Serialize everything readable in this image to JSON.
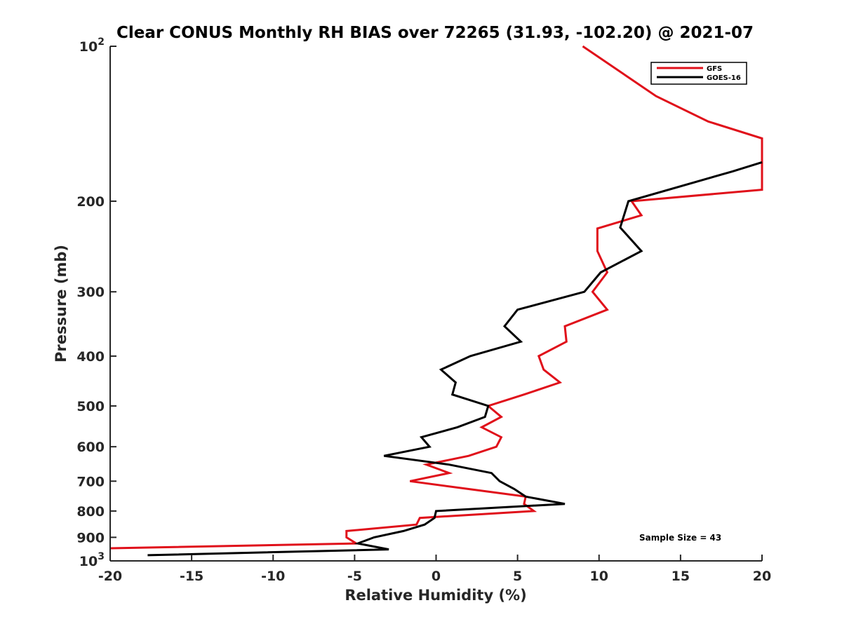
{
  "chart_data": {
    "type": "line",
    "title": "Clear CONUS Monthly RH BIAS over 72265 (31.93, -102.20) @ 2021-07",
    "xlabel": "Relative Humidity (%)",
    "ylabel": "Pressure (mb)",
    "xlim": [
      -20,
      20
    ],
    "ylim": [
      100,
      1000
    ],
    "yscale": "log",
    "y_reversed": true,
    "grid": false,
    "legend_position": "top-right",
    "x_ticks": [
      -20,
      -15,
      -10,
      -5,
      0,
      5,
      10,
      15,
      20
    ],
    "y_tick_labels": [
      {
        "value": 100,
        "base": "10",
        "exp": "2"
      },
      {
        "value": 200,
        "text": "200"
      },
      {
        "value": 300,
        "text": "300"
      },
      {
        "value": 400,
        "text": "400"
      },
      {
        "value": 500,
        "text": "500"
      },
      {
        "value": 600,
        "text": "600"
      },
      {
        "value": 700,
        "text": "700"
      },
      {
        "value": 800,
        "text": "800"
      },
      {
        "value": 900,
        "text": "900"
      },
      {
        "value": 1000,
        "base": "10",
        "exp": "3"
      }
    ],
    "series": [
      {
        "name": "GFS",
        "color": "#e0101a",
        "points": [
          [
            9.0,
            100
          ],
          [
            13.5,
            125
          ],
          [
            16.7,
            140
          ],
          [
            20.0,
            151
          ],
          [
            20.0,
            190
          ],
          [
            12.0,
            200
          ],
          [
            12.6,
            213
          ],
          [
            9.9,
            226
          ],
          [
            9.9,
            250
          ],
          [
            10.5,
            275
          ],
          [
            9.6,
            300
          ],
          [
            10.5,
            325
          ],
          [
            7.9,
            350
          ],
          [
            8.0,
            375
          ],
          [
            6.3,
            400
          ],
          [
            6.6,
            425
          ],
          [
            7.6,
            450
          ],
          [
            5.4,
            475
          ],
          [
            3.2,
            500
          ],
          [
            4.0,
            525
          ],
          [
            2.8,
            550
          ],
          [
            4.0,
            575
          ],
          [
            3.7,
            600
          ],
          [
            2.0,
            625
          ],
          [
            -0.6,
            650
          ],
          [
            0.8,
            675
          ],
          [
            -1.6,
            700
          ],
          [
            2.0,
            725
          ],
          [
            5.5,
            750
          ],
          [
            5.4,
            775
          ],
          [
            6.0,
            800
          ],
          [
            -1.0,
            825
          ],
          [
            -1.2,
            850
          ],
          [
            -5.5,
            875
          ],
          [
            -5.5,
            900
          ],
          [
            -4.9,
            925
          ],
          [
            -20.0,
            945
          ]
        ]
      },
      {
        "name": "GOES-16",
        "color": "#000000",
        "points": [
          [
            20.0,
            168
          ],
          [
            18.2,
            175
          ],
          [
            11.8,
            200
          ],
          [
            11.3,
            225
          ],
          [
            12.6,
            250
          ],
          [
            10.1,
            275
          ],
          [
            9.1,
            300
          ],
          [
            5.0,
            325
          ],
          [
            4.2,
            350
          ],
          [
            5.2,
            375
          ],
          [
            2.1,
            400
          ],
          [
            0.3,
            425
          ],
          [
            1.2,
            450
          ],
          [
            1.0,
            475
          ],
          [
            3.2,
            500
          ],
          [
            3.0,
            525
          ],
          [
            1.3,
            550
          ],
          [
            -0.9,
            575
          ],
          [
            -0.4,
            600
          ],
          [
            -3.2,
            625
          ],
          [
            0.8,
            650
          ],
          [
            3.4,
            675
          ],
          [
            3.9,
            700
          ],
          [
            4.8,
            725
          ],
          [
            5.5,
            750
          ],
          [
            7.9,
            775
          ],
          [
            0.0,
            800
          ],
          [
            -0.1,
            825
          ],
          [
            -0.7,
            850
          ],
          [
            -2.0,
            875
          ],
          [
            -3.8,
            900
          ],
          [
            -4.8,
            925
          ],
          [
            -2.9,
            950
          ],
          [
            -17.7,
            975
          ]
        ]
      }
    ],
    "annotations": [
      "Sample Size = 43"
    ]
  }
}
